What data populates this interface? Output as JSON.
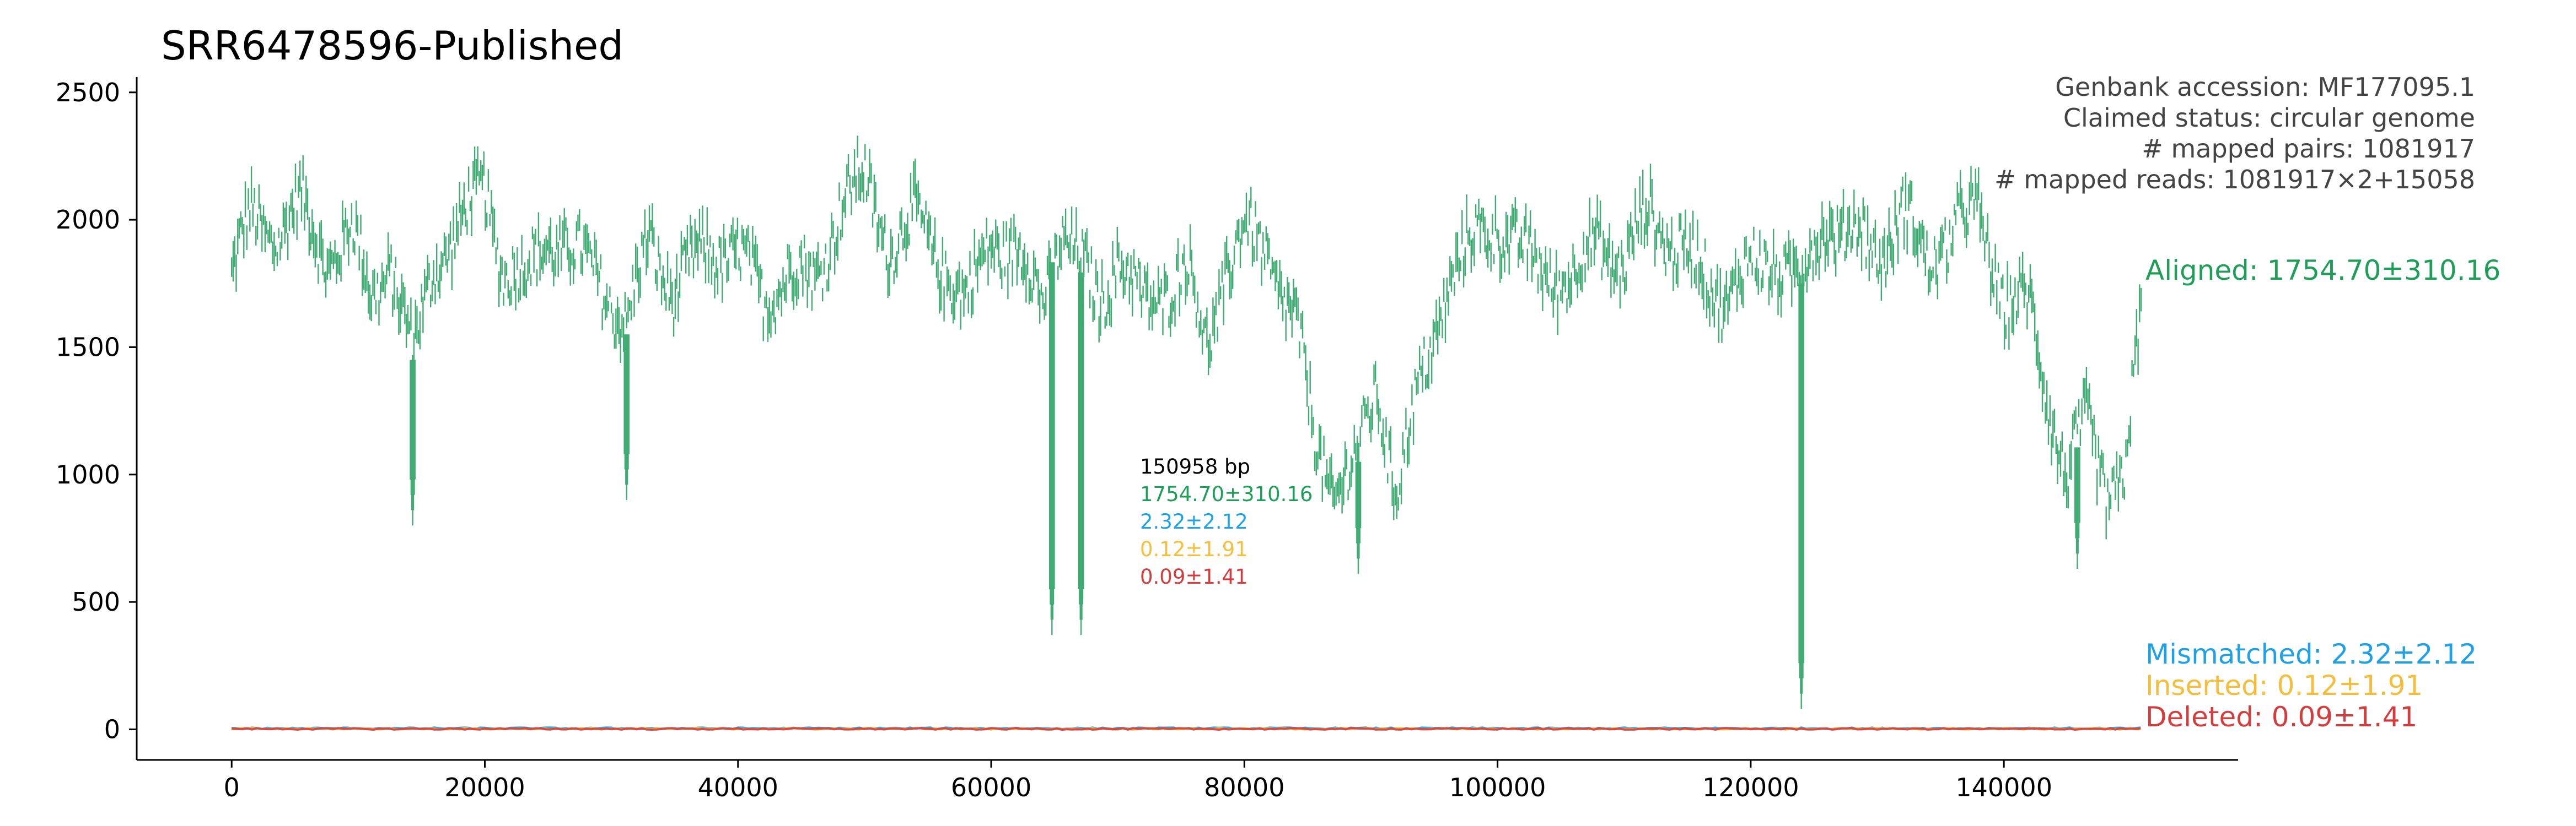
{
  "colors": {
    "aligned": "#1f9e5a",
    "mismatched": "#1ea1e6",
    "inserted": "#f5be3c",
    "deleted": "#d43d3d",
    "axis": "#000000",
    "info_text": "#444444"
  },
  "info": {
    "accession": "Genbank accession: MF177095.1",
    "status": "Claimed status: circular genome",
    "pairs": "# mapped pairs: 1081917",
    "reads": "# mapped reads: 1081917×2+15058"
  },
  "center_stats": {
    "length": "150958 bp",
    "aligned": "1754.70±310.16",
    "mismatched": "2.32±2.12",
    "inserted": "0.12±1.91",
    "deleted": "0.09±1.41"
  },
  "legend": {
    "aligned": "Aligned: 1754.70±310.16",
    "mismatched": "Mismatched: 2.32±2.12",
    "inserted": "Inserted: 0.12±1.91",
    "deleted": "Deleted: 0.09±1.41"
  },
  "chart_data": {
    "type": "scatter",
    "title": "SRR6478596-Published",
    "xlabel": "",
    "ylabel": "",
    "xlim": [
      -7500,
      158500
    ],
    "ylim": [
      -120,
      2560
    ],
    "xticks": [
      0,
      20000,
      40000,
      60000,
      80000,
      100000,
      120000,
      140000
    ],
    "yticks": [
      0,
      500,
      1000,
      1500,
      2000,
      2500
    ],
    "grid": false,
    "legend_position": "right",
    "series": [
      {
        "name": "Aligned",
        "color_key": "aligned",
        "mean": 1754.7,
        "sd": 310.16,
        "profile_x": [
          0,
          1500,
          3500,
          5500,
          7500,
          9500,
          11000,
          12500,
          14300,
          16000,
          18000,
          20000,
          21500,
          23000,
          25000,
          27000,
          29000,
          31200,
          33000,
          35000,
          37500,
          40000,
          42000,
          44000,
          46000,
          48000,
          50000,
          52000,
          54000,
          56000,
          58000,
          60000,
          62000,
          64000,
          65500,
          67000,
          68500,
          70000,
          72000,
          74000,
          75500,
          77000,
          78500,
          80000,
          82000,
          84000,
          85500,
          87000,
          89000,
          90500,
          92000,
          94000,
          96000,
          98000,
          100000,
          102000,
          104000,
          106000,
          108000,
          110000,
          112000,
          114000,
          116000,
          118000,
          120000,
          122000,
          124000,
          126000,
          128000,
          130000,
          132000,
          134000,
          136000,
          138000,
          140000,
          142000,
          143500,
          145000,
          146500,
          148000,
          149500,
          150958
        ],
        "profile_y": [
          1780,
          2000,
          1950,
          2050,
          1850,
          1950,
          1700,
          1850,
          1450,
          1850,
          1950,
          2150,
          1800,
          1750,
          1950,
          1850,
          1800,
          1550,
          1950,
          1700,
          1900,
          1850,
          1700,
          1800,
          1750,
          2050,
          2150,
          1900,
          2000,
          1850,
          1650,
          1950,
          1850,
          1700,
          1950,
          1800,
          1700,
          1850,
          1650,
          1750,
          1800,
          1500,
          1800,
          1950,
          1850,
          1600,
          1150,
          950,
          1050,
          1350,
          950,
          1350,
          1750,
          1900,
          2000,
          1850,
          1800,
          1750,
          1950,
          1800,
          2050,
          1900,
          1800,
          1700,
          1800,
          1850,
          1750,
          2000,
          1950,
          1850,
          2050,
          1800,
          2000,
          2000,
          1700,
          1650,
          1300,
          1000,
          1200,
          950,
          1000,
          1650
        ],
        "dips": [
          {
            "x": 14300,
            "y": 800
          },
          {
            "x": 31200,
            "y": 900
          },
          {
            "x": 64800,
            "y": 370
          },
          {
            "x": 67100,
            "y": 370
          },
          {
            "x": 89000,
            "y": 610
          },
          {
            "x": 124000,
            "y": 80
          },
          {
            "x": 145800,
            "y": 630
          }
        ]
      },
      {
        "name": "Mismatched",
        "color_key": "mismatched",
        "mean": 2.32,
        "sd": 2.12
      },
      {
        "name": "Inserted",
        "color_key": "inserted",
        "mean": 0.12,
        "sd": 1.91
      },
      {
        "name": "Deleted",
        "color_key": "deleted",
        "mean": 0.09,
        "sd": 1.41
      }
    ]
  }
}
